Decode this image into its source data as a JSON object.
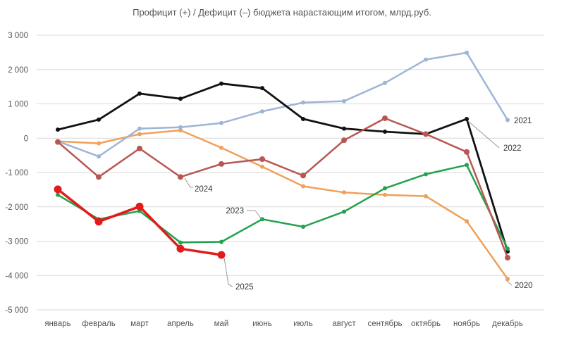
{
  "chart_data": {
    "type": "line",
    "title": "Профицит (+) / Дефицит (–) бюджета нарастающим итогом, млрд.руб.",
    "xlabel": "",
    "ylabel": "",
    "categories": [
      "январь",
      "февраль",
      "март",
      "апрель",
      "май",
      "июнь",
      "июль",
      "август",
      "сентябрь",
      "октябрь",
      "ноябрь",
      "декабрь"
    ],
    "y_ticks": [
      3000,
      2000,
      1000,
      0,
      -1000,
      -2000,
      -3000,
      -4000,
      -5000
    ],
    "y_tick_labels": [
      "3 000",
      "2 000",
      "1 000",
      "0",
      "-1 000",
      "-2 000",
      "-3 000",
      "-4 000",
      "-5 000"
    ],
    "ylim": [
      -5000,
      3000
    ],
    "grid": true,
    "legend": "inline labels",
    "series": [
      {
        "name": "2020",
        "color": "#f0a05a",
        "width": 2.5,
        "marker": 3,
        "values": [
          -90,
          -150,
          120,
          230,
          -280,
          -830,
          -1400,
          -1580,
          -1650,
          -1690,
          -2420,
          -4100
        ]
      },
      {
        "name": "2021",
        "color": "#9eb5d6",
        "width": 2.5,
        "marker": 3,
        "values": [
          -90,
          -530,
          280,
          320,
          440,
          780,
          1040,
          1080,
          1610,
          2290,
          2490,
          530
        ]
      },
      {
        "name": "2022",
        "color": "#111111",
        "width": 2.8,
        "marker": 3,
        "values": [
          250,
          540,
          1300,
          1150,
          1590,
          1460,
          560,
          280,
          190,
          120,
          560,
          -3300
        ]
      },
      {
        "name": "2023",
        "color": "#23a24d",
        "width": 2.5,
        "marker": 3,
        "values": [
          -1650,
          -2360,
          -2120,
          -3040,
          -3020,
          -2360,
          -2580,
          -2140,
          -1460,
          -1050,
          -780,
          -3220
        ]
      },
      {
        "name": "2024",
        "color": "#b85752",
        "width": 2.5,
        "marker": 4,
        "values": [
          -110,
          -1130,
          -300,
          -1130,
          -750,
          -610,
          -1090,
          -60,
          580,
          120,
          -400,
          -3480
        ]
      },
      {
        "name": "2025",
        "color": "#e31b1b",
        "width": 3.5,
        "marker": 5.5,
        "values": [
          -1490,
          -2430,
          -1990,
          -3220,
          -3400,
          null,
          null,
          null,
          null,
          null,
          null,
          null
        ]
      }
    ],
    "series_labels": [
      {
        "name": "2021",
        "text": "2021"
      },
      {
        "name": "2022",
        "text": "2022"
      },
      {
        "name": "2024",
        "text": "2024"
      },
      {
        "name": "2023",
        "text": "2023"
      },
      {
        "name": "2025",
        "text": "2025"
      },
      {
        "name": "2020",
        "text": "2020"
      }
    ]
  }
}
